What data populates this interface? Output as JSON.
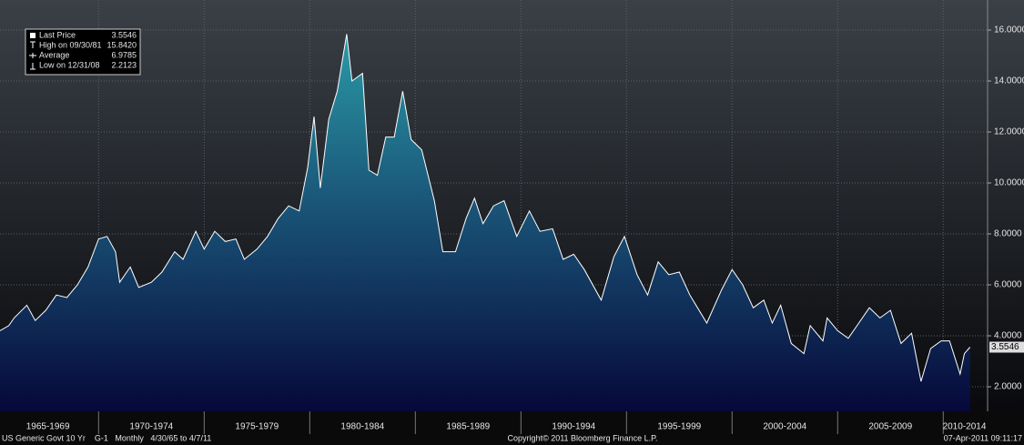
{
  "chart_data": {
    "type": "area",
    "series": [
      {
        "color": "#ffffff",
        "x": [
          1965.33,
          1965.75,
          1966.0,
          1966.6,
          1967.0,
          1967.5,
          1968.0,
          1968.5,
          1969.0,
          1969.5,
          1970.0,
          1970.4,
          1970.8,
          1971.0,
          1971.5,
          1971.9,
          1972.5,
          1973.0,
          1973.6,
          1974.0,
          1974.6,
          1975.0,
          1975.5,
          1976.0,
          1976.5,
          1976.9,
          1977.5,
          1978.0,
          1978.5,
          1979.0,
          1979.5,
          1979.9,
          1980.2,
          1980.5,
          1980.9,
          1981.3,
          1981.75,
          1982.0,
          1982.5,
          1982.8,
          1983.2,
          1983.6,
          1984.0,
          1984.4,
          1984.8,
          1985.3,
          1985.9,
          1986.3,
          1986.9,
          1987.4,
          1987.8,
          1988.2,
          1988.7,
          1989.2,
          1989.8,
          1990.4,
          1990.9,
          1991.5,
          1992.0,
          1992.5,
          1993.0,
          1993.8,
          1994.4,
          1994.9,
          1995.5,
          1996.0,
          1996.5,
          1997.0,
          1997.5,
          1998.0,
          1998.8,
          1999.5,
          2000.0,
          2000.5,
          2001.0,
          2001.5,
          2001.9,
          2002.3,
          2002.8,
          2003.4,
          2003.7,
          2004.3,
          2004.5,
          2005.0,
          2005.5,
          2006.0,
          2006.5,
          2007.0,
          2007.5,
          2008.0,
          2008.5,
          2008.95,
          2009.4,
          2009.9,
          2010.3,
          2010.8,
          2011.0,
          2011.27
        ],
        "values": [
          4.2,
          4.4,
          4.7,
          5.2,
          4.6,
          5.0,
          5.6,
          5.5,
          6.0,
          6.7,
          7.8,
          7.9,
          7.3,
          6.1,
          6.7,
          5.9,
          6.1,
          6.5,
          7.3,
          7.0,
          8.1,
          7.4,
          8.1,
          7.7,
          7.8,
          7.0,
          7.4,
          7.9,
          8.6,
          9.1,
          8.9,
          10.6,
          12.6,
          9.8,
          12.5,
          13.6,
          15.842,
          14.0,
          14.3,
          10.5,
          10.3,
          11.8,
          11.8,
          13.6,
          11.7,
          11.3,
          9.3,
          7.3,
          7.3,
          8.6,
          9.4,
          8.4,
          9.1,
          9.3,
          7.9,
          8.9,
          8.1,
          8.2,
          7.0,
          7.2,
          6.6,
          5.4,
          7.1,
          7.9,
          6.4,
          5.6,
          6.9,
          6.4,
          6.5,
          5.6,
          4.5,
          5.8,
          6.6,
          6.0,
          5.1,
          5.4,
          4.5,
          5.2,
          3.7,
          3.3,
          4.4,
          3.8,
          4.7,
          4.2,
          3.9,
          4.5,
          5.1,
          4.7,
          5.0,
          3.7,
          4.1,
          2.2123,
          3.5,
          3.8,
          3.8,
          2.5,
          3.3,
          3.5546
        ]
      }
    ],
    "xlim": [
      1965.33,
      2012.1
    ],
    "ylim": [
      1.036,
      17.18
    ],
    "yticks": [
      {
        "value": 2,
        "label": "2.0000"
      },
      {
        "value": 4,
        "label": "4.0000"
      },
      {
        "value": 6,
        "label": "6.0000"
      },
      {
        "value": 8,
        "label": "8.0000"
      },
      {
        "value": 10,
        "label": "10.0000"
      },
      {
        "value": 12,
        "label": "12.0000"
      },
      {
        "value": 14,
        "label": "14.0000"
      },
      {
        "value": 16,
        "label": "16.0000"
      }
    ],
    "xticks": [
      {
        "value": 1967.6,
        "label": "1965-1969"
      },
      {
        "value": 1972.5,
        "label": "1970-1974"
      },
      {
        "value": 1977.5,
        "label": "1975-1979"
      },
      {
        "value": 1982.5,
        "label": "1980-1984"
      },
      {
        "value": 1987.5,
        "label": "1985-1989"
      },
      {
        "value": 1992.5,
        "label": "1990-1994"
      },
      {
        "value": 1997.5,
        "label": "1995-1999"
      },
      {
        "value": 2002.5,
        "label": "2000-2004"
      },
      {
        "value": 2007.5,
        "label": "2005-2009"
      },
      {
        "value": 2011.0,
        "label": "2010-2014"
      }
    ],
    "xgrid": [
      1970,
      1975,
      1980,
      1985,
      1990,
      1995,
      2000,
      2005,
      2010
    ],
    "grid": true,
    "stats": [
      {
        "label": "Last Price",
        "value": "3.5546"
      },
      {
        "label": "High on 09/30/81",
        "value": "15.8420"
      },
      {
        "label": "Average",
        "value": "6.9785"
      },
      {
        "label": "Low on 12/31/08",
        "value": "2.2123"
      }
    ],
    "footer": {
      "left": "US Generic Govt 10 Yr    G-1   Monthly   4/30/65 to 4/7/11",
      "center": "Copyright© 2011 Bloomberg Finance L.P.",
      "right": "07-Apr-2011 09:11:17"
    }
  }
}
